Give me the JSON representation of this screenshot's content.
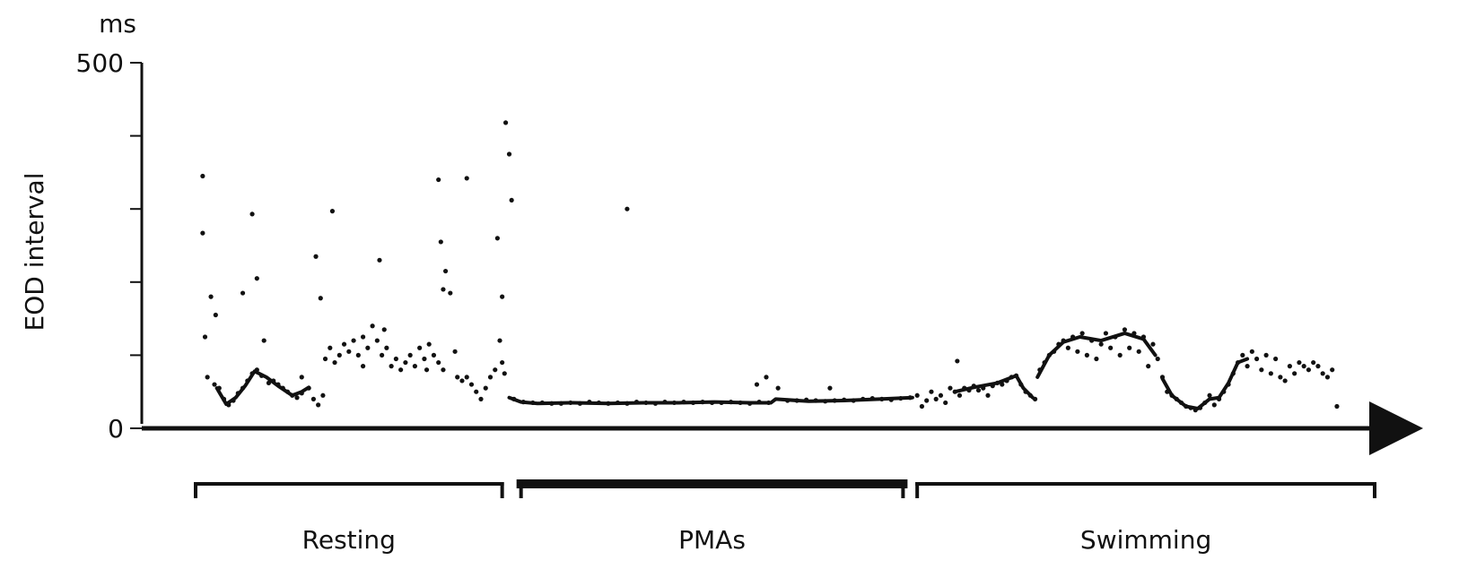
{
  "chart_data": {
    "type": "scatter",
    "title": "",
    "unit_label": "ms",
    "ylabel": "EOD interval",
    "xlabel": "",
    "ylim": [
      0,
      500
    ],
    "xlim": [
      0,
      100
    ],
    "y_ticks": [
      0,
      100,
      200,
      300,
      400,
      500
    ],
    "y_tick_labels": [
      "0",
      "",
      "",
      "",
      "",
      "500"
    ],
    "grid": false,
    "x_axis_arrow": true,
    "ink_color": "#111111",
    "periods": [
      {
        "label": "Resting",
        "start": 0,
        "end": 26,
        "style": "thin"
      },
      {
        "label": "PMAs",
        "start": 27.6,
        "end": 60,
        "style": "thick"
      },
      {
        "label": "Swimming",
        "start": 61.2,
        "end": 100,
        "style": "thin"
      }
    ],
    "series": [
      {
        "points": [
          [
            0.6,
            345
          ],
          [
            0.6,
            267
          ],
          [
            0.8,
            125
          ],
          [
            1.0,
            70
          ],
          [
            1.3,
            180
          ],
          [
            1.7,
            155
          ],
          [
            1.6,
            60
          ],
          [
            2.0,
            55
          ],
          [
            2.4,
            40
          ],
          [
            2.8,
            32
          ],
          [
            3.2,
            38
          ],
          [
            3.6,
            48
          ],
          [
            4.0,
            55
          ],
          [
            4.4,
            65
          ],
          [
            4.8,
            75
          ],
          [
            5.2,
            80
          ],
          [
            4.0,
            185
          ],
          [
            5.6,
            72
          ],
          [
            6.2,
            62
          ],
          [
            5.2,
            205
          ],
          [
            4.8,
            293
          ],
          [
            5.8,
            120
          ],
          [
            6.6,
            65
          ],
          [
            7.0,
            60
          ],
          [
            7.4,
            55
          ],
          [
            7.8,
            50
          ],
          [
            8.2,
            45
          ],
          [
            8.6,
            42
          ],
          [
            9.0,
            48
          ],
          [
            9.6,
            55
          ],
          [
            9.0,
            70
          ],
          [
            10.0,
            40
          ],
          [
            10.4,
            32
          ],
          [
            10.8,
            45
          ],
          [
            10.2,
            235
          ],
          [
            10.6,
            178
          ],
          [
            11.0,
            95
          ],
          [
            11.4,
            110
          ],
          [
            11.8,
            90
          ],
          [
            12.2,
            100
          ],
          [
            11.6,
            297
          ],
          [
            12.6,
            115
          ],
          [
            13.0,
            105
          ],
          [
            13.4,
            120
          ],
          [
            13.8,
            100
          ],
          [
            14.2,
            125
          ],
          [
            14.6,
            110
          ],
          [
            15.0,
            140
          ],
          [
            14.2,
            85
          ],
          [
            15.4,
            120
          ],
          [
            15.8,
            100
          ],
          [
            16.0,
            135
          ],
          [
            16.2,
            110
          ],
          [
            15.6,
            230
          ],
          [
            16.6,
            85
          ],
          [
            17.0,
            95
          ],
          [
            17.4,
            80
          ],
          [
            17.8,
            90
          ],
          [
            18.2,
            100
          ],
          [
            18.6,
            85
          ],
          [
            19.0,
            110
          ],
          [
            19.4,
            95
          ],
          [
            19.8,
            115
          ],
          [
            20.2,
            100
          ],
          [
            20.6,
            90
          ],
          [
            21.0,
            80
          ],
          [
            19.6,
            80
          ],
          [
            20.6,
            340
          ],
          [
            20.8,
            255
          ],
          [
            21.2,
            215
          ],
          [
            21.0,
            190
          ],
          [
            21.6,
            185
          ],
          [
            22.2,
            70
          ],
          [
            22.6,
            65
          ],
          [
            23.0,
            70
          ],
          [
            23.4,
            60
          ],
          [
            23.0,
            342
          ],
          [
            23.8,
            50
          ],
          [
            22.0,
            105
          ],
          [
            24.2,
            40
          ],
          [
            24.6,
            55
          ],
          [
            25.0,
            70
          ],
          [
            25.4,
            80
          ],
          [
            25.6,
            260
          ],
          [
            25.8,
            120
          ],
          [
            26.0,
            90
          ],
          [
            26.0,
            180
          ],
          [
            26.3,
            418
          ],
          [
            26.6,
            375
          ],
          [
            26.8,
            312
          ],
          [
            26.2,
            75
          ],
          [
            27.0,
            40
          ],
          [
            27.8,
            36
          ],
          [
            28.6,
            35
          ],
          [
            29.4,
            35
          ],
          [
            30.2,
            34
          ],
          [
            31.0,
            34
          ],
          [
            31.8,
            35
          ],
          [
            32.6,
            34
          ],
          [
            33.4,
            36
          ],
          [
            34.2,
            35
          ],
          [
            35.0,
            34
          ],
          [
            35.8,
            35
          ],
          [
            36.6,
            34
          ],
          [
            37.4,
            36
          ],
          [
            38.2,
            35
          ],
          [
            39.0,
            34
          ],
          [
            39.8,
            36
          ],
          [
            40.6,
            35
          ],
          [
            41.4,
            36
          ],
          [
            42.2,
            35
          ],
          [
            43.0,
            36
          ],
          [
            43.8,
            35
          ],
          [
            44.6,
            35
          ],
          [
            45.4,
            36
          ],
          [
            46.2,
            35
          ],
          [
            47.0,
            34
          ],
          [
            47.8,
            36
          ],
          [
            48.6,
            35
          ],
          [
            36.6,
            300
          ],
          [
            47.6,
            60
          ],
          [
            48.4,
            70
          ],
          [
            49.4,
            55
          ],
          [
            50.2,
            38
          ],
          [
            51.0,
            38
          ],
          [
            51.8,
            39
          ],
          [
            52.6,
            38
          ],
          [
            53.4,
            37
          ],
          [
            53.8,
            55
          ],
          [
            54.2,
            38
          ],
          [
            55.0,
            39
          ],
          [
            55.8,
            38
          ],
          [
            56.6,
            40
          ],
          [
            57.4,
            41
          ],
          [
            58.2,
            40
          ],
          [
            59.0,
            39
          ],
          [
            59.8,
            41
          ],
          [
            60.6,
            42
          ],
          [
            61.2,
            45
          ],
          [
            61.6,
            30
          ],
          [
            62.0,
            38
          ],
          [
            62.4,
            50
          ],
          [
            62.8,
            40
          ],
          [
            63.2,
            45
          ],
          [
            63.6,
            35
          ],
          [
            64.0,
            55
          ],
          [
            64.4,
            50
          ],
          [
            64.6,
            92
          ],
          [
            64.8,
            45
          ],
          [
            65.2,
            55
          ],
          [
            65.6,
            52
          ],
          [
            66.0,
            58
          ],
          [
            66.4,
            52
          ],
          [
            66.8,
            55
          ],
          [
            67.2,
            45
          ],
          [
            67.6,
            58
          ],
          [
            68.0,
            62
          ],
          [
            68.4,
            60
          ],
          [
            68.8,
            65
          ],
          [
            69.2,
            70
          ],
          [
            69.6,
            72
          ],
          [
            70.0,
            60
          ],
          [
            70.4,
            50
          ],
          [
            70.8,
            45
          ],
          [
            71.2,
            40
          ],
          [
            71.6,
            80
          ],
          [
            72.0,
            90
          ],
          [
            72.4,
            100
          ],
          [
            72.8,
            105
          ],
          [
            73.2,
            115
          ],
          [
            73.6,
            120
          ],
          [
            74.0,
            110
          ],
          [
            74.4,
            125
          ],
          [
            74.8,
            105
          ],
          [
            75.2,
            130
          ],
          [
            75.6,
            100
          ],
          [
            76.0,
            120
          ],
          [
            76.4,
            95
          ],
          [
            76.8,
            115
          ],
          [
            77.2,
            130
          ],
          [
            77.6,
            110
          ],
          [
            78.0,
            125
          ],
          [
            78.4,
            100
          ],
          [
            78.8,
            135
          ],
          [
            79.2,
            110
          ],
          [
            79.6,
            130
          ],
          [
            80.0,
            105
          ],
          [
            80.4,
            125
          ],
          [
            80.8,
            85
          ],
          [
            81.2,
            115
          ],
          [
            81.6,
            95
          ],
          [
            82.0,
            70
          ],
          [
            82.4,
            50
          ],
          [
            82.8,
            45
          ],
          [
            83.2,
            40
          ],
          [
            83.6,
            35
          ],
          [
            84.0,
            30
          ],
          [
            84.4,
            28
          ],
          [
            84.8,
            25
          ],
          [
            85.2,
            28
          ],
          [
            85.6,
            35
          ],
          [
            86.0,
            45
          ],
          [
            86.4,
            32
          ],
          [
            86.8,
            40
          ],
          [
            87.2,
            50
          ],
          [
            87.6,
            60
          ],
          [
            88.0,
            75
          ],
          [
            88.4,
            90
          ],
          [
            88.8,
            100
          ],
          [
            89.2,
            85
          ],
          [
            89.6,
            105
          ],
          [
            90.0,
            95
          ],
          [
            90.4,
            80
          ],
          [
            90.8,
            100
          ],
          [
            91.2,
            75
          ],
          [
            91.6,
            95
          ],
          [
            92.0,
            70
          ],
          [
            92.4,
            65
          ],
          [
            92.8,
            85
          ],
          [
            93.2,
            75
          ],
          [
            93.6,
            90
          ],
          [
            94.0,
            85
          ],
          [
            94.4,
            80
          ],
          [
            94.8,
            90
          ],
          [
            95.2,
            85
          ],
          [
            95.6,
            75
          ],
          [
            96.0,
            70
          ],
          [
            96.4,
            80
          ],
          [
            96.8,
            30
          ]
        ],
        "traces": [
          [
            [
              26.6,
              42
            ],
            [
              27.6,
              36
            ],
            [
              29.0,
              34
            ],
            [
              32.0,
              35
            ],
            [
              35.0,
              34
            ],
            [
              38.0,
              35
            ],
            [
              41.0,
              35
            ],
            [
              44.0,
              36
            ],
            [
              47.0,
              35
            ],
            [
              48.8,
              35
            ],
            [
              49.2,
              40
            ],
            [
              52.0,
              37
            ],
            [
              55.0,
              38
            ],
            [
              58.0,
              40
            ],
            [
              60.8,
              42
            ]
          ],
          [
            [
              1.8,
              55
            ],
            [
              2.6,
              33
            ],
            [
              3.4,
              42
            ],
            [
              4.2,
              58
            ],
            [
              5.0,
              78
            ],
            [
              6.0,
              70
            ],
            [
              7.0,
              58
            ],
            [
              8.2,
              45
            ],
            [
              9.0,
              50
            ],
            [
              9.6,
              56
            ]
          ],
          [
            [
              64.4,
              50
            ],
            [
              66.0,
              56
            ],
            [
              68.0,
              62
            ],
            [
              69.6,
              72
            ],
            [
              70.2,
              55
            ],
            [
              71.0,
              42
            ]
          ],
          [
            [
              71.4,
              70
            ],
            [
              72.4,
              100
            ],
            [
              73.6,
              118
            ],
            [
              75.0,
              125
            ],
            [
              76.8,
              120
            ],
            [
              78.8,
              130
            ],
            [
              80.4,
              122
            ],
            [
              81.4,
              100
            ]
          ],
          [
            [
              82.0,
              68
            ],
            [
              82.8,
              45
            ],
            [
              84.0,
              30
            ],
            [
              85.0,
              27
            ],
            [
              86.0,
              40
            ],
            [
              86.8,
              42
            ]
          ],
          [
            [
              86.8,
              42
            ],
            [
              87.6,
              62
            ],
            [
              88.4,
              90
            ],
            [
              89.2,
              95
            ]
          ]
        ]
      }
    ]
  }
}
